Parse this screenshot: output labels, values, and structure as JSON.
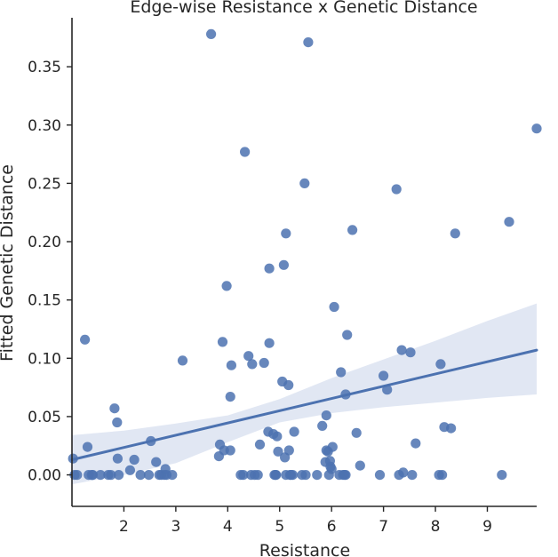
{
  "chart_data": {
    "type": "scatter",
    "title": "Edge-wise Resistance x Genetic Distance",
    "xlabel": "Resistance",
    "ylabel": "Fitted Genetic Distance",
    "xlim": [
      1.0,
      9.95
    ],
    "ylim": [
      -0.027,
      0.392
    ],
    "xticks": [
      2,
      3,
      4,
      5,
      6,
      7,
      8,
      9
    ],
    "xtick_labels": [
      "2",
      "3",
      "4",
      "5",
      "6",
      "7",
      "8",
      "9"
    ],
    "yticks": [
      0.0,
      0.05,
      0.1,
      0.15,
      0.2,
      0.25,
      0.3,
      0.35
    ],
    "ytick_labels": [
      "0.00",
      "0.05",
      "0.10",
      "0.15",
      "0.20",
      "0.25",
      "0.30",
      "0.35"
    ],
    "grid": false,
    "colors": {
      "points": "#4c72b0",
      "line": "#4c72b0",
      "band": "#c9d4ea",
      "axis": "#262626"
    },
    "points": [
      [
        1.02,
        0.014
      ],
      [
        1.05,
        0.0
      ],
      [
        1.1,
        0.0
      ],
      [
        1.25,
        0.116
      ],
      [
        1.3,
        0.024
      ],
      [
        1.32,
        0.0
      ],
      [
        1.38,
        0.0
      ],
      [
        1.4,
        0.0
      ],
      [
        1.55,
        0.0
      ],
      [
        1.7,
        0.0
      ],
      [
        1.75,
        0.0
      ],
      [
        1.82,
        0.057
      ],
      [
        1.87,
        0.045
      ],
      [
        1.88,
        0.014
      ],
      [
        1.9,
        0.0
      ],
      [
        2.12,
        0.004
      ],
      [
        2.2,
        0.013
      ],
      [
        2.32,
        0.0
      ],
      [
        2.48,
        0.0
      ],
      [
        2.52,
        0.029
      ],
      [
        2.62,
        0.011
      ],
      [
        2.68,
        0.0
      ],
      [
        2.72,
        0.0
      ],
      [
        2.78,
        0.0
      ],
      [
        2.8,
        0.005
      ],
      [
        2.82,
        0.0
      ],
      [
        2.93,
        0.0
      ],
      [
        3.13,
        0.098
      ],
      [
        3.68,
        0.378
      ],
      [
        3.83,
        0.016
      ],
      [
        3.85,
        0.026
      ],
      [
        3.9,
        0.114
      ],
      [
        3.93,
        0.021
      ],
      [
        3.98,
        0.162
      ],
      [
        4.05,
        0.021
      ],
      [
        4.05,
        0.067
      ],
      [
        4.07,
        0.094
      ],
      [
        4.25,
        0.0
      ],
      [
        4.3,
        0.0
      ],
      [
        4.33,
        0.277
      ],
      [
        4.4,
        0.102
      ],
      [
        4.45,
        0.0
      ],
      [
        4.47,
        0.095
      ],
      [
        4.52,
        0.0
      ],
      [
        4.58,
        0.0
      ],
      [
        4.62,
        0.026
      ],
      [
        4.7,
        0.096
      ],
      [
        4.78,
        0.037
      ],
      [
        4.8,
        0.177
      ],
      [
        4.8,
        0.113
      ],
      [
        4.88,
        0.035
      ],
      [
        4.9,
        0.0
      ],
      [
        4.92,
        0.0
      ],
      [
        4.93,
        0.0
      ],
      [
        4.95,
        0.033
      ],
      [
        4.97,
        0.02
      ],
      [
        5.05,
        0.08
      ],
      [
        5.08,
        0.18
      ],
      [
        5.1,
        0.015
      ],
      [
        5.12,
        0.207
      ],
      [
        5.12,
        0.0
      ],
      [
        5.17,
        0.077
      ],
      [
        5.18,
        0.021
      ],
      [
        5.2,
        0.0
      ],
      [
        5.22,
        0.0
      ],
      [
        5.25,
        0.0
      ],
      [
        5.28,
        0.037
      ],
      [
        5.43,
        0.0
      ],
      [
        5.48,
        0.25
      ],
      [
        5.5,
        0.0
      ],
      [
        5.55,
        0.371
      ],
      [
        5.72,
        0.0
      ],
      [
        5.82,
        0.042
      ],
      [
        5.88,
        0.011
      ],
      [
        5.9,
        0.051
      ],
      [
        5.9,
        0.021
      ],
      [
        5.93,
        0.02
      ],
      [
        5.95,
        0.0
      ],
      [
        5.97,
        0.012
      ],
      [
        5.98,
        0.007
      ],
      [
        6.0,
        0.005
      ],
      [
        6.02,
        0.024
      ],
      [
        6.05,
        0.144
      ],
      [
        6.15,
        0.0
      ],
      [
        6.18,
        0.088
      ],
      [
        6.22,
        0.0
      ],
      [
        6.25,
        0.0
      ],
      [
        6.27,
        0.0
      ],
      [
        6.27,
        0.069
      ],
      [
        6.3,
        0.12
      ],
      [
        6.4,
        0.21
      ],
      [
        6.48,
        0.036
      ],
      [
        6.55,
        0.008
      ],
      [
        6.93,
        0.0
      ],
      [
        7.0,
        0.085
      ],
      [
        7.07,
        0.073
      ],
      [
        7.25,
        0.245
      ],
      [
        7.3,
        0.0
      ],
      [
        7.35,
        0.107
      ],
      [
        7.38,
        0.002
      ],
      [
        7.52,
        0.105
      ],
      [
        7.55,
        0.0
      ],
      [
        7.62,
        0.027
      ],
      [
        8.07,
        0.0
      ],
      [
        8.1,
        0.095
      ],
      [
        8.13,
        0.0
      ],
      [
        8.17,
        0.041
      ],
      [
        8.3,
        0.04
      ],
      [
        8.38,
        0.207
      ],
      [
        9.28,
        0.0
      ],
      [
        9.42,
        0.217
      ],
      [
        9.95,
        0.297
      ]
    ],
    "regression": {
      "x": [
        1.0,
        9.95
      ],
      "y": [
        0.013,
        0.107
      ]
    },
    "confidence_band": {
      "x": [
        1.0,
        2.0,
        3.0,
        4.0,
        5.0,
        6.0,
        7.0,
        8.0,
        9.0,
        9.95
      ],
      "upper": [
        0.034,
        0.038,
        0.044,
        0.051,
        0.065,
        0.083,
        0.099,
        0.115,
        0.132,
        0.147
      ],
      "lower": [
        -0.008,
        0.0,
        0.01,
        0.028,
        0.045,
        0.053,
        0.058,
        0.062,
        0.066,
        0.069
      ]
    }
  }
}
